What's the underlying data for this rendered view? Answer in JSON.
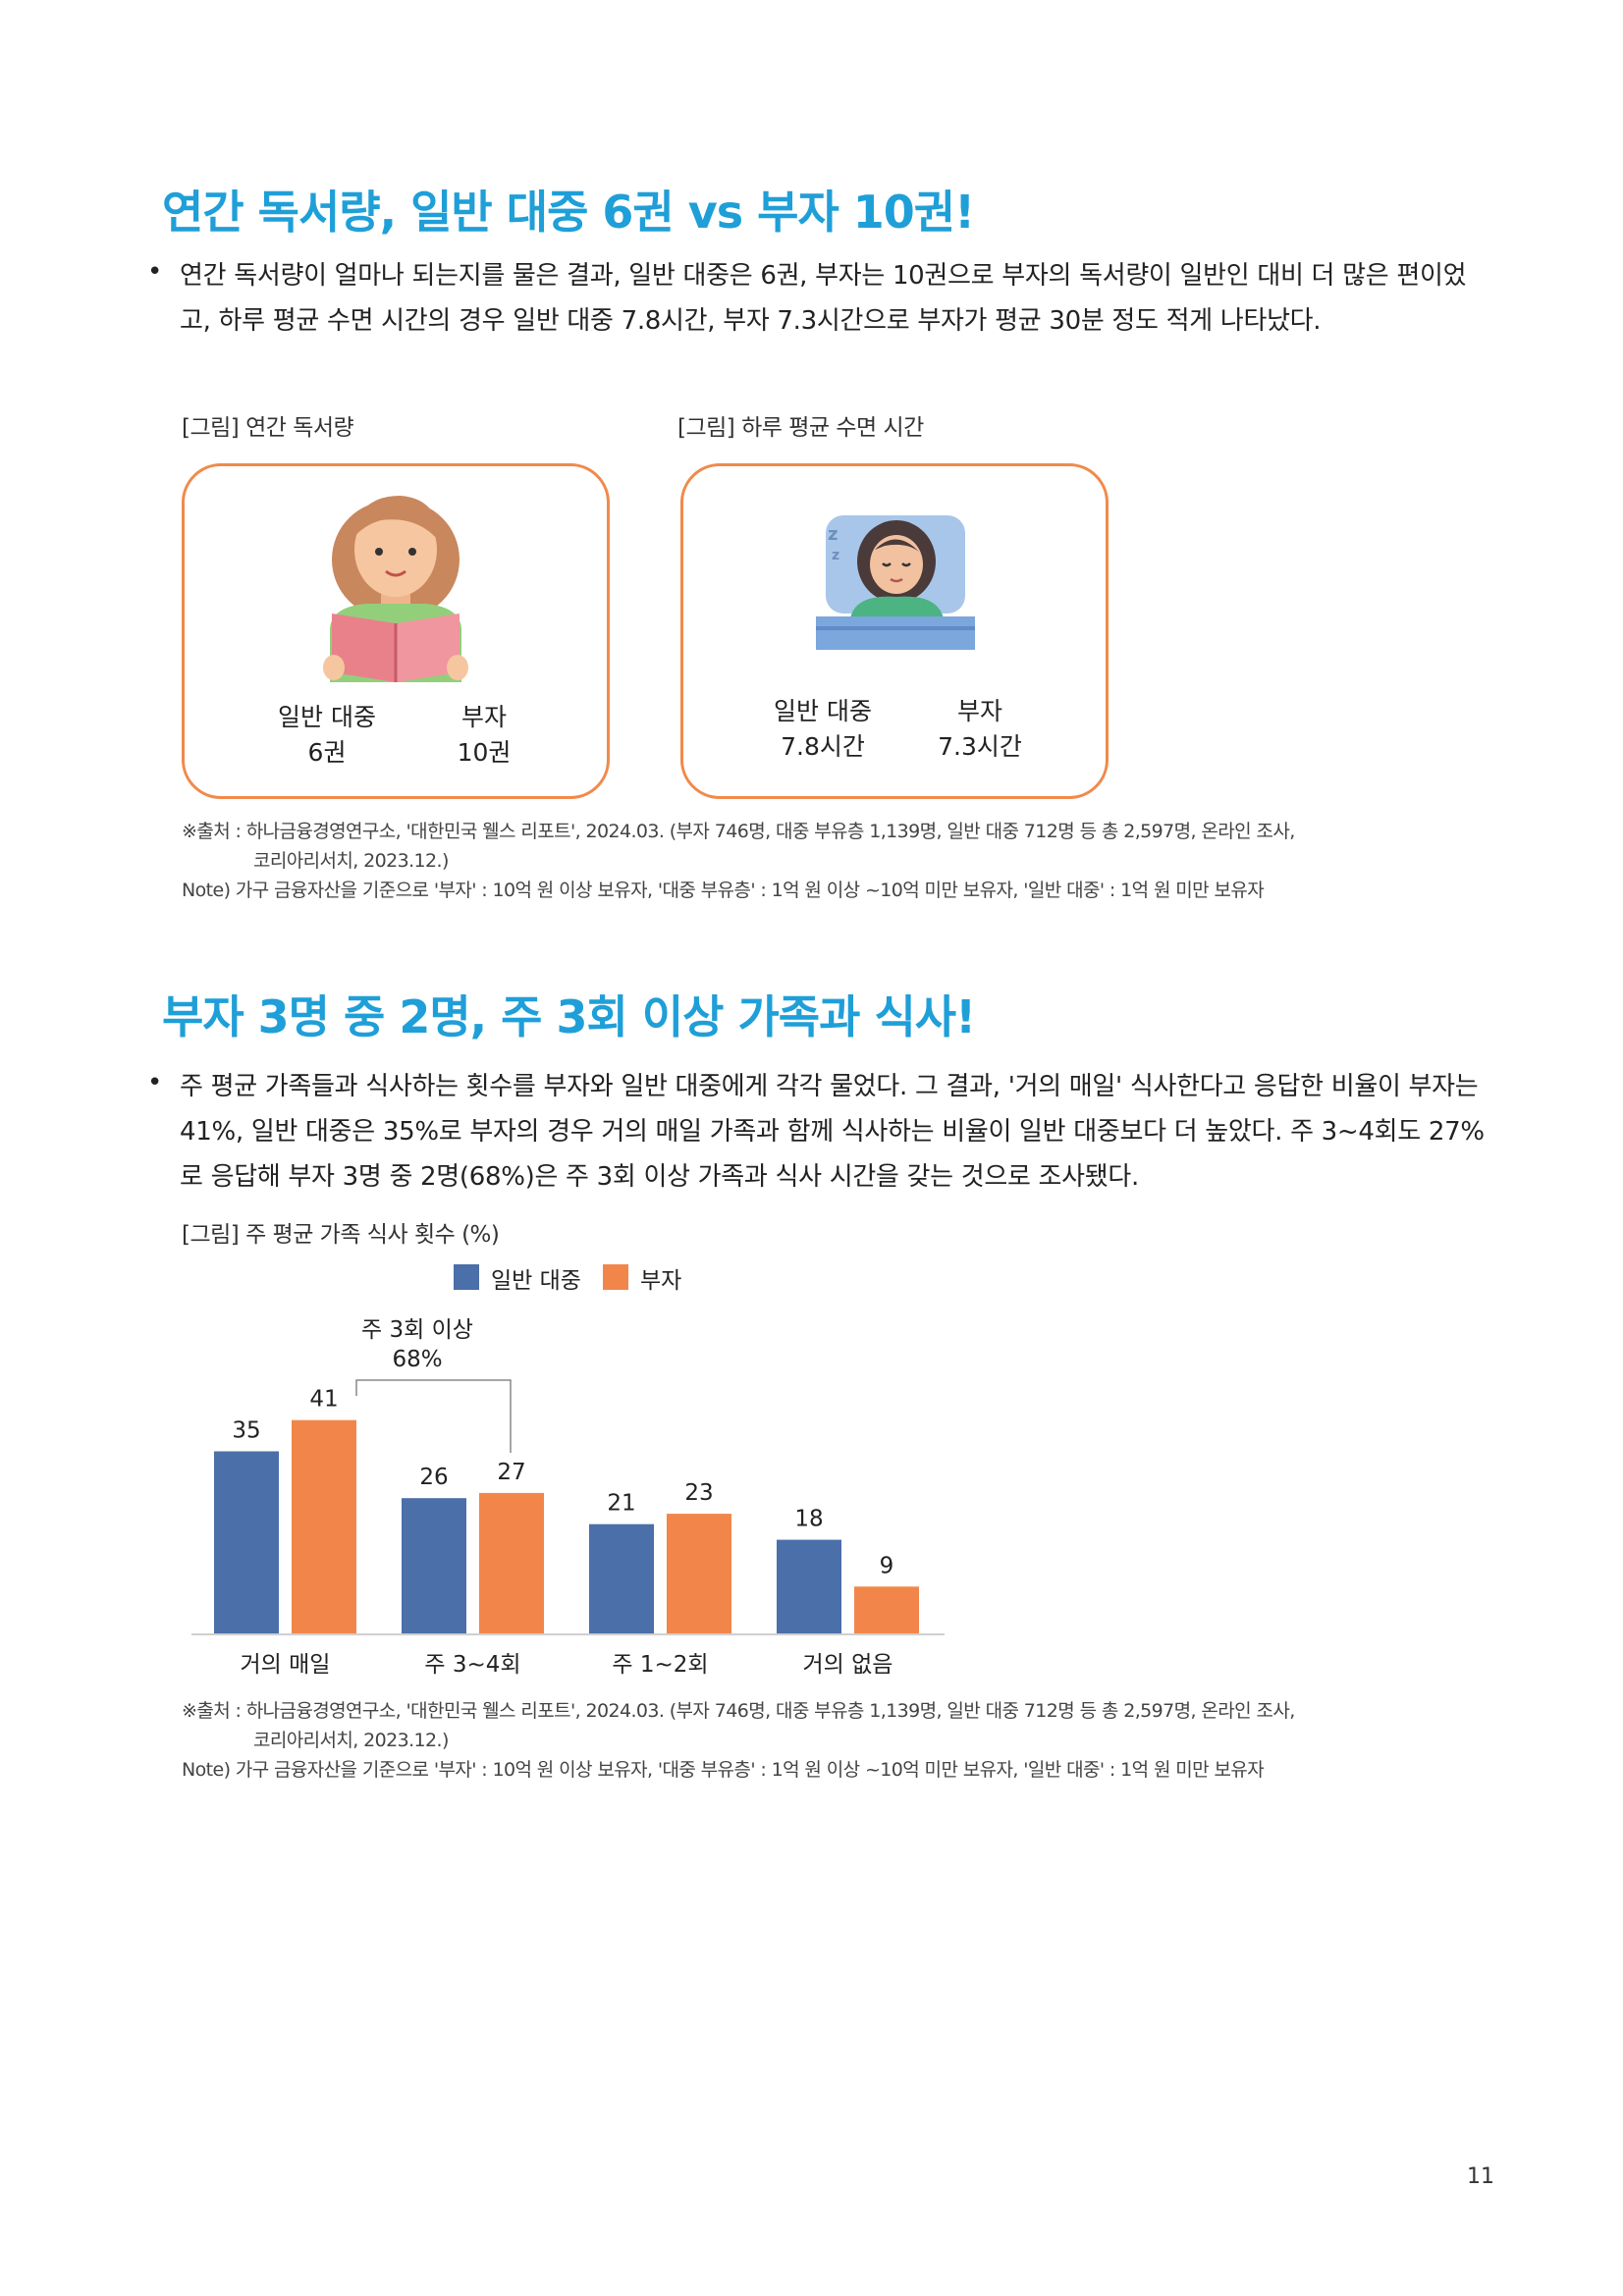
{
  "section1": {
    "title": "연간 독서량, 일반 대중 6권 vs 부자 10권!",
    "bullet": "•",
    "paragraph": "연간 독서량이 얼마나 되는지를 물은 결과, 일반 대중은 6권, 부자는 10권으로 부자의 독서량이 일반인 대비 더 많은 편이었고, 하루 평균 수면 시간의 경우 일반 대중 7.8시간, 부자 7.3시간으로 부자가 평균 30분 정도 적게 나타났다.",
    "figure1": {
      "caption": "[그림] 연간 독서량",
      "left_label": "일반 대중",
      "left_value": "6권",
      "right_label": "부자",
      "right_value": "10권"
    },
    "figure2": {
      "caption": "[그림] 하루 평균 수면 시간",
      "left_label": "일반 대중",
      "left_value": "7.8시간",
      "right_label": "부자",
      "right_value": "7.3시간"
    },
    "source_line1": "※출처 : 하나금융경영연구소, '대한민국 웰스 리포트', 2024.03. (부자 746명, 대중 부유층 1,139명, 일반 대중 712명 등 총 2,597명, 온라인 조사,",
    "source_line2": "코리아리서치, 2023.12.)",
    "note": "Note) 가구 금융자산을 기준으로 '부자' : 10억 원 이상 보유자, '대중 부유층' : 1억 원 이상 ~10억 미만 보유자, '일반 대중' : 1억 원 미만 보유자"
  },
  "section2": {
    "title": "부자 3명 중 2명, 주 3회 이상 가족과 식사!",
    "bullet": "•",
    "paragraph": "주 평균 가족들과 식사하는 횟수를 부자와 일반 대중에게 각각 물었다. 그 결과, '거의 매일' 식사한다고 응답한 비율이 부자는 41%, 일반 대중은 35%로 부자의 경우 거의 매일 가족과 함께 식사하는 비율이 일반 대중보다 더 높았다. 주 3~4회도 27%로 응답해 부자 3명 중 2명(68%)은 주 3회 이상 가족과 식사 시간을 갖는 것으로 조사됐다.",
    "chart_caption": "[그림] 주 평균 가족 식사 횟수 (%)",
    "annotation_line1": "주 3회 이상",
    "annotation_line2": "68%",
    "source_line1": "※출처 : 하나금융경영연구소, '대한민국 웰스 리포트', 2024.03. (부자 746명, 대중 부유층 1,139명, 일반 대중 712명 등 총 2,597명, 온라인 조사,",
    "source_line2": "코리아리서치, 2023.12.)",
    "note": "Note) 가구 금융자산을 기준으로 '부자' : 10억 원 이상 보유자, '대중 부유층' : 1억 원 이상 ~10억 미만 보유자, '일반 대중' : 1억 원 미만 보유자"
  },
  "colors": {
    "title": "#1f9fd8",
    "series_general": "#4a6fa9",
    "series_rich": "#f2864a",
    "card_border": "#f08a4b"
  },
  "page_number": "11",
  "chart_data": {
    "type": "bar",
    "categories": [
      "거의 매일",
      "주 3~4회",
      "주 1~2회",
      "거의 없음"
    ],
    "series": [
      {
        "name": "일반 대중",
        "values": [
          35,
          26,
          21,
          18
        ]
      },
      {
        "name": "부자",
        "values": [
          41,
          27,
          23,
          9
        ]
      }
    ],
    "ylim": [
      0,
      50
    ],
    "grid": false,
    "legend": "top-center"
  }
}
